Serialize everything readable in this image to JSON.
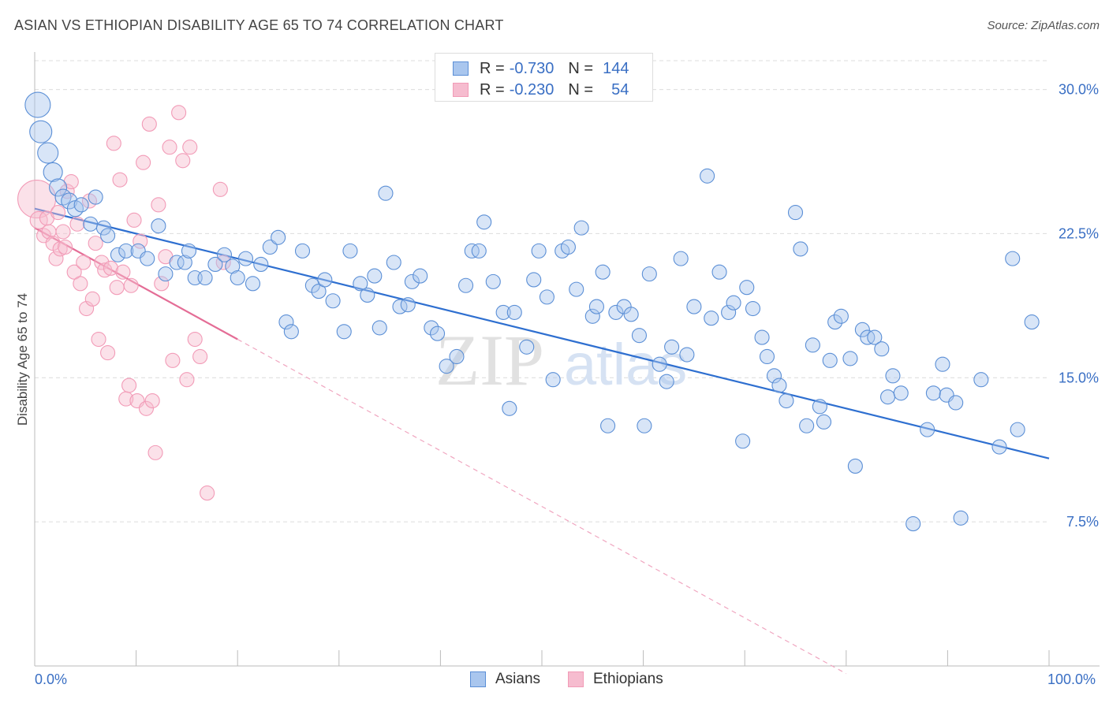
{
  "header": {
    "title": "ASIAN VS ETHIOPIAN DISABILITY AGE 65 TO 74 CORRELATION CHART",
    "source": "Source: ZipAtlas.com"
  },
  "legend_top": {
    "rows": [
      {
        "r_label": "R =",
        "r_value": "-0.730",
        "n_label": "N =",
        "n_value": "144",
        "color": "#5b8fd6"
      },
      {
        "r_label": "R =",
        "r_value": "-0.230",
        "n_label": "N =",
        "n_value": "54",
        "color": "#f29bb7"
      }
    ]
  },
  "watermark": {
    "zip": "ZIP",
    "atlas": "atlas"
  },
  "chart_data": {
    "type": "scatter",
    "title": "ASIAN VS ETHIOPIAN DISABILITY AGE 65 TO 74 CORRELATION CHART",
    "xlabel": "",
    "ylabel": "Disability Age 65 to 74",
    "xlim": [
      0,
      100
    ],
    "ylim": [
      0,
      31.5
    ],
    "x_tick_labels": [
      "0.0%",
      "100.0%"
    ],
    "y_ticks": [
      7.5,
      15.0,
      22.5,
      30.0
    ],
    "y_tick_labels": [
      "7.5%",
      "15.0%",
      "22.5%",
      "30.0%"
    ],
    "grid": true,
    "legend_position": "bottom-center",
    "series": [
      {
        "name": "Asians",
        "color": "#5b8fd6",
        "fill": "#a9c6ee",
        "trend": {
          "x": [
            0,
            100
          ],
          "y": [
            23.8,
            10.8
          ],
          "style": "solid"
        },
        "points": [
          [
            0.3,
            29.2,
            16
          ],
          [
            0.6,
            27.8,
            14
          ],
          [
            1.3,
            26.7,
            13
          ],
          [
            1.8,
            25.7,
            12
          ],
          [
            2.3,
            24.9,
            11
          ],
          [
            2.8,
            24.4,
            10
          ],
          [
            3.4,
            24.2,
            10
          ],
          [
            4.0,
            23.8,
            10
          ],
          [
            4.6,
            24.0,
            9
          ],
          [
            5.5,
            23.0,
            9
          ],
          [
            6.0,
            24.4,
            9
          ],
          [
            6.8,
            22.8,
            9
          ],
          [
            7.2,
            22.4,
            9
          ],
          [
            8.2,
            21.4,
            9
          ],
          [
            9.0,
            21.6,
            9
          ],
          [
            10.2,
            21.6,
            9
          ],
          [
            11.1,
            21.2,
            9
          ],
          [
            12.2,
            22.9,
            9
          ],
          [
            12.9,
            20.4,
            9
          ],
          [
            14.0,
            21.0,
            9
          ],
          [
            14.8,
            21.0,
            9
          ],
          [
            15.2,
            21.6,
            9
          ],
          [
            15.8,
            20.2,
            9
          ],
          [
            16.8,
            20.2,
            9
          ],
          [
            17.8,
            20.9,
            9
          ],
          [
            18.7,
            21.4,
            9
          ],
          [
            19.5,
            20.8,
            9
          ],
          [
            20.0,
            20.2,
            9
          ],
          [
            20.8,
            21.2,
            9
          ],
          [
            21.5,
            19.9,
            9
          ],
          [
            22.3,
            20.9,
            9
          ],
          [
            23.2,
            21.8,
            9
          ],
          [
            24.0,
            22.3,
            9
          ],
          [
            24.8,
            17.9,
            9
          ],
          [
            25.3,
            17.4,
            9
          ],
          [
            26.4,
            21.6,
            9
          ],
          [
            27.4,
            19.8,
            9
          ],
          [
            28.0,
            19.5,
            9
          ],
          [
            28.6,
            20.1,
            9
          ],
          [
            29.4,
            19.0,
            9
          ],
          [
            30.5,
            17.4,
            9
          ],
          [
            31.1,
            21.6,
            9
          ],
          [
            32.1,
            19.9,
            9
          ],
          [
            32.8,
            19.3,
            9
          ],
          [
            33.5,
            20.3,
            9
          ],
          [
            34.0,
            17.6,
            9
          ],
          [
            34.6,
            24.6,
            9
          ],
          [
            35.4,
            21.0,
            9
          ],
          [
            36.0,
            18.7,
            9
          ],
          [
            36.8,
            18.8,
            9
          ],
          [
            37.2,
            20.0,
            9
          ],
          [
            38.0,
            20.3,
            9
          ],
          [
            39.1,
            17.6,
            9
          ],
          [
            39.7,
            17.3,
            9
          ],
          [
            40.6,
            15.6,
            9
          ],
          [
            41.6,
            16.1,
            9
          ],
          [
            42.5,
            19.8,
            9
          ],
          [
            43.1,
            21.6,
            9
          ],
          [
            43.8,
            21.6,
            9
          ],
          [
            44.3,
            23.1,
            9
          ],
          [
            45.2,
            20.0,
            9
          ],
          [
            46.2,
            18.4,
            9
          ],
          [
            46.8,
            13.4,
            9
          ],
          [
            47.3,
            18.4,
            9
          ],
          [
            48.5,
            16.6,
            9
          ],
          [
            49.2,
            20.1,
            9
          ],
          [
            49.7,
            21.6,
            9
          ],
          [
            50.5,
            19.2,
            9
          ],
          [
            51.1,
            14.9,
            9
          ],
          [
            52.0,
            21.6,
            9
          ],
          [
            52.6,
            21.8,
            9
          ],
          [
            53.4,
            19.6,
            9
          ],
          [
            53.9,
            22.8,
            9
          ],
          [
            55.0,
            18.2,
            9
          ],
          [
            55.4,
            18.7,
            9
          ],
          [
            56.0,
            20.5,
            9
          ],
          [
            56.5,
            12.5,
            9
          ],
          [
            57.3,
            18.4,
            9
          ],
          [
            58.1,
            18.7,
            9
          ],
          [
            58.8,
            18.3,
            9
          ],
          [
            59.6,
            17.2,
            9
          ],
          [
            60.1,
            12.5,
            9
          ],
          [
            60.6,
            20.4,
            9
          ],
          [
            61.6,
            15.7,
            9
          ],
          [
            62.3,
            14.8,
            9
          ],
          [
            62.8,
            16.6,
            9
          ],
          [
            63.7,
            21.2,
            9
          ],
          [
            64.3,
            16.2,
            9
          ],
          [
            65.0,
            18.7,
            9
          ],
          [
            66.3,
            25.5,
            9
          ],
          [
            66.7,
            18.1,
            9
          ],
          [
            67.5,
            20.5,
            9
          ],
          [
            68.4,
            18.4,
            9
          ],
          [
            68.9,
            18.9,
            9
          ],
          [
            69.8,
            11.7,
            9
          ],
          [
            70.2,
            19.7,
            9
          ],
          [
            70.8,
            18.6,
            9
          ],
          [
            71.7,
            17.1,
            9
          ],
          [
            72.2,
            16.1,
            9
          ],
          [
            72.9,
            15.1,
            9
          ],
          [
            73.4,
            14.6,
            9
          ],
          [
            74.1,
            13.8,
            9
          ],
          [
            75.0,
            23.6,
            9
          ],
          [
            75.5,
            21.7,
            9
          ],
          [
            76.1,
            12.5,
            9
          ],
          [
            76.7,
            16.7,
            9
          ],
          [
            77.4,
            13.5,
            9
          ],
          [
            77.8,
            12.7,
            9
          ],
          [
            78.4,
            15.9,
            9
          ],
          [
            78.9,
            17.9,
            9
          ],
          [
            79.5,
            18.2,
            9
          ],
          [
            80.4,
            16.0,
            9
          ],
          [
            80.9,
            10.4,
            9
          ],
          [
            81.6,
            17.5,
            9
          ],
          [
            82.1,
            17.1,
            9
          ],
          [
            82.8,
            17.1,
            9
          ],
          [
            83.5,
            16.5,
            9
          ],
          [
            84.1,
            14.0,
            9
          ],
          [
            84.6,
            15.1,
            9
          ],
          [
            85.4,
            14.2,
            9
          ],
          [
            86.6,
            7.4,
            9
          ],
          [
            88.0,
            12.3,
            9
          ],
          [
            88.6,
            14.2,
            9
          ],
          [
            89.5,
            15.7,
            9
          ],
          [
            89.9,
            14.1,
            9
          ],
          [
            90.8,
            13.7,
            9
          ],
          [
            91.3,
            7.7,
            9
          ],
          [
            93.3,
            14.9,
            9
          ],
          [
            95.1,
            11.4,
            9
          ],
          [
            96.4,
            21.2,
            9
          ],
          [
            96.9,
            12.3,
            9
          ],
          [
            98.3,
            17.9,
            9
          ]
        ]
      },
      {
        "name": "Ethiopians",
        "color": "#f29bb7",
        "fill": "#f6bccf",
        "trend": {
          "x": [
            0,
            20,
            80
          ],
          "y": [
            22.8,
            17.0,
            -0.4
          ],
          "style": "solid-then-dashed"
        },
        "points": [
          [
            0.2,
            24.3,
            24
          ],
          [
            0.4,
            23.2,
            11
          ],
          [
            0.9,
            22.4,
            9
          ],
          [
            1.2,
            23.3,
            9
          ],
          [
            1.4,
            22.6,
            9
          ],
          [
            1.8,
            22.0,
            9
          ],
          [
            2.1,
            21.2,
            9
          ],
          [
            2.3,
            23.6,
            9
          ],
          [
            2.5,
            21.7,
            9
          ],
          [
            2.8,
            22.6,
            9
          ],
          [
            3.0,
            21.8,
            9
          ],
          [
            3.2,
            24.7,
            9
          ],
          [
            3.6,
            25.2,
            9
          ],
          [
            3.9,
            20.5,
            9
          ],
          [
            4.2,
            23.0,
            9
          ],
          [
            4.5,
            19.9,
            9
          ],
          [
            4.8,
            21.0,
            9
          ],
          [
            5.1,
            18.6,
            9
          ],
          [
            5.4,
            24.2,
            9
          ],
          [
            5.7,
            19.1,
            9
          ],
          [
            6.0,
            22.0,
            9
          ],
          [
            6.3,
            17.0,
            9
          ],
          [
            6.6,
            21.0,
            9
          ],
          [
            6.9,
            20.6,
            9
          ],
          [
            7.2,
            16.3,
            9
          ],
          [
            7.5,
            20.7,
            9
          ],
          [
            7.8,
            27.2,
            9
          ],
          [
            8.1,
            19.7,
            9
          ],
          [
            8.4,
            25.3,
            9
          ],
          [
            8.7,
            20.5,
            9
          ],
          [
            9.0,
            13.9,
            9
          ],
          [
            9.3,
            14.6,
            9
          ],
          [
            9.5,
            19.8,
            9
          ],
          [
            9.8,
            23.2,
            9
          ],
          [
            10.1,
            13.8,
            9
          ],
          [
            10.4,
            22.1,
            9
          ],
          [
            10.7,
            26.2,
            9
          ],
          [
            11.0,
            13.4,
            9
          ],
          [
            11.3,
            28.2,
            9
          ],
          [
            11.6,
            13.8,
            9
          ],
          [
            11.9,
            11.1,
            9
          ],
          [
            12.2,
            24.0,
            9
          ],
          [
            12.5,
            19.9,
            9
          ],
          [
            12.9,
            21.3,
            9
          ],
          [
            13.3,
            27.0,
            9
          ],
          [
            13.6,
            15.9,
            9
          ],
          [
            14.2,
            28.8,
            9
          ],
          [
            14.6,
            26.3,
            9
          ],
          [
            15.0,
            14.9,
            9
          ],
          [
            15.3,
            27.0,
            9
          ],
          [
            15.8,
            17.0,
            9
          ],
          [
            16.3,
            16.1,
            9
          ],
          [
            17.0,
            9.0,
            9
          ],
          [
            18.3,
            24.8,
            9
          ],
          [
            18.6,
            21.0,
            9
          ]
        ]
      }
    ]
  }
}
